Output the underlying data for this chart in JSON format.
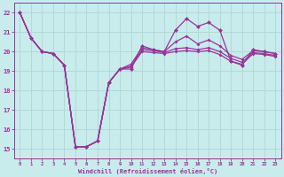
{
  "xlabel": "Windchill (Refroidissement éolien,°C)",
  "background_color": "#c8ecec",
  "grid_color": "#b4d8d8",
  "line_color": "#993399",
  "x": [
    0,
    1,
    2,
    3,
    4,
    5,
    6,
    7,
    8,
    9,
    10,
    11,
    12,
    13,
    14,
    15,
    16,
    17,
    18,
    19,
    20,
    21,
    22,
    23
  ],
  "y_main": [
    22.0,
    20.7,
    20.0,
    19.9,
    19.3,
    15.1,
    15.1,
    15.4,
    18.4,
    19.1,
    19.1,
    20.3,
    20.1,
    20.0,
    21.1,
    21.7,
    21.3,
    21.5,
    21.1,
    19.5,
    19.3,
    20.1,
    20.0,
    19.9
  ],
  "y_low": [
    22.0,
    20.7,
    20.0,
    19.9,
    19.3,
    15.1,
    15.1,
    15.4,
    18.4,
    19.1,
    19.2,
    20.0,
    19.95,
    19.9,
    20.0,
    20.05,
    20.0,
    20.05,
    19.85,
    19.5,
    19.35,
    19.9,
    19.85,
    19.75
  ],
  "y_mid": [
    22.0,
    20.7,
    20.0,
    19.9,
    19.3,
    15.1,
    15.1,
    15.4,
    18.4,
    19.1,
    19.25,
    20.1,
    20.05,
    19.95,
    20.15,
    20.2,
    20.1,
    20.2,
    20.0,
    19.65,
    19.45,
    19.95,
    19.9,
    19.8
  ],
  "y_high": [
    22.0,
    20.7,
    20.0,
    19.9,
    19.3,
    15.1,
    15.1,
    15.4,
    18.4,
    19.1,
    19.35,
    20.2,
    20.1,
    20.0,
    20.5,
    20.8,
    20.4,
    20.6,
    20.3,
    19.8,
    19.6,
    20.05,
    20.0,
    19.9
  ],
  "ylim": [
    14.5,
    22.5
  ],
  "yticks": [
    15,
    16,
    17,
    18,
    19,
    20,
    21,
    22
  ],
  "xlim": [
    -0.5,
    23.5
  ]
}
